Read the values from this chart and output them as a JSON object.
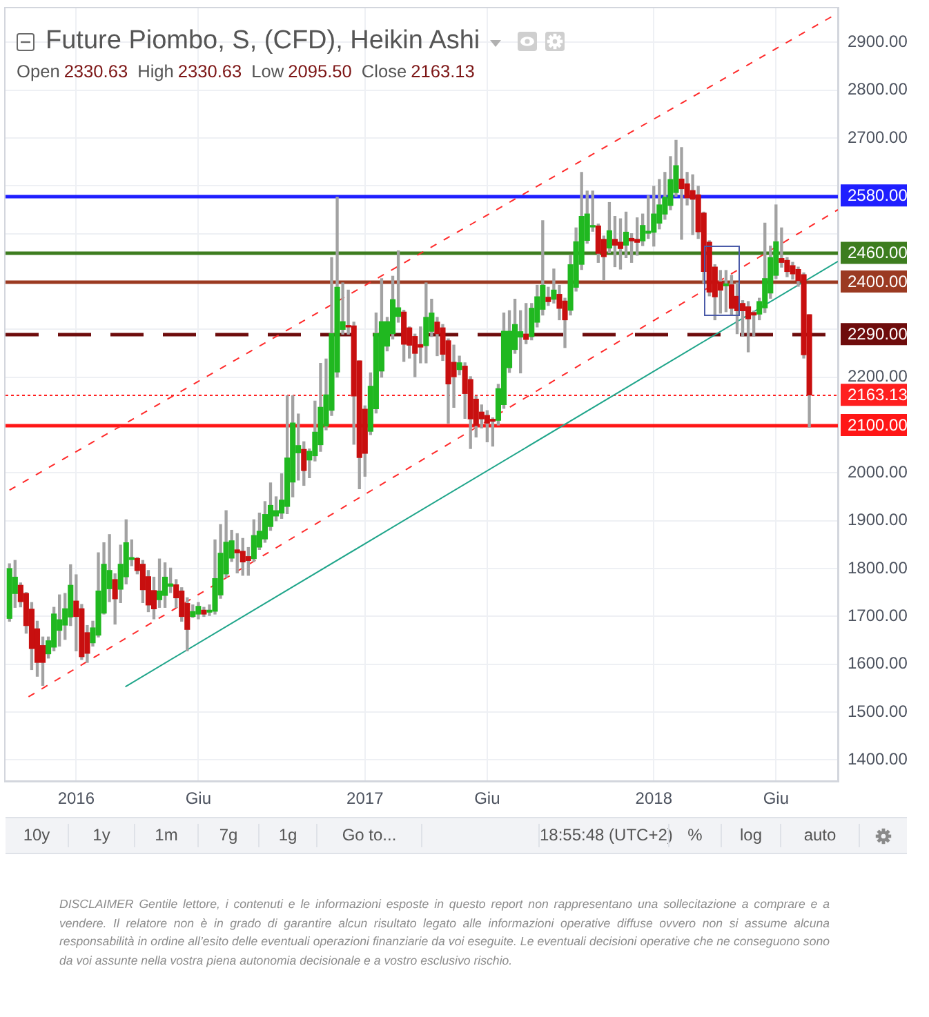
{
  "chart_data": {
    "type": "candlestick",
    "title": "Future Piombo, S, (CFD), Heikin Ashi",
    "subtitle": "Open 2330.63 High 2330.63 Low 2095.50 Close 2163.13",
    "x": [
      "2015-10-12",
      "2015-10-19",
      "2015-10-26",
      "2015-11-02",
      "2015-11-09",
      "2015-11-16",
      "2015-11-23",
      "2015-11-30",
      "2015-12-07",
      "2015-12-14",
      "2015-12-21",
      "2015-12-28",
      "2016-01-04",
      "2016-01-11",
      "2016-01-18",
      "2016-01-25",
      "2016-02-01",
      "2016-02-08",
      "2016-02-15",
      "2016-02-22",
      "2016-02-29",
      "2016-03-07",
      "2016-03-14",
      "2016-03-21",
      "2016-03-28",
      "2016-04-04",
      "2016-04-11",
      "2016-04-18",
      "2016-04-25",
      "2016-05-02",
      "2016-05-09",
      "2016-05-16",
      "2016-05-23",
      "2016-05-30",
      "2016-06-06",
      "2016-06-13",
      "2016-06-20",
      "2016-06-27",
      "2016-07-04",
      "2016-07-11",
      "2016-07-18",
      "2016-07-25",
      "2016-08-01",
      "2016-08-08",
      "2016-08-15",
      "2016-08-22",
      "2016-08-29",
      "2016-09-05",
      "2016-09-12",
      "2016-09-19",
      "2016-09-26",
      "2016-10-03",
      "2016-10-10",
      "2016-10-17",
      "2016-10-24",
      "2016-10-31",
      "2016-11-07",
      "2016-11-14",
      "2016-11-21",
      "2016-11-28",
      "2016-12-05",
      "2016-12-12",
      "2016-12-19",
      "2016-12-26",
      "2017-01-02",
      "2017-01-09",
      "2017-01-16",
      "2017-01-23",
      "2017-01-30",
      "2017-02-06",
      "2017-02-13",
      "2017-02-20",
      "2017-02-27",
      "2017-03-06",
      "2017-03-13",
      "2017-03-20",
      "2017-03-27",
      "2017-04-03",
      "2017-04-10",
      "2017-04-17",
      "2017-04-24",
      "2017-05-01",
      "2017-05-08",
      "2017-05-15",
      "2017-05-22",
      "2017-05-29",
      "2017-06-05",
      "2017-06-12",
      "2017-06-19",
      "2017-06-26",
      "2017-07-03",
      "2017-07-10",
      "2017-07-17",
      "2017-07-24",
      "2017-07-31",
      "2017-08-07",
      "2017-08-14",
      "2017-08-21",
      "2017-08-28",
      "2017-09-04",
      "2017-09-11",
      "2017-09-18",
      "2017-09-25",
      "2017-10-02",
      "2017-10-09",
      "2017-10-16",
      "2017-10-23",
      "2017-10-30",
      "2017-11-06",
      "2017-11-13",
      "2017-11-20",
      "2017-11-27",
      "2017-12-04",
      "2017-12-11",
      "2017-12-18",
      "2017-12-25",
      "2018-01-01",
      "2018-01-08",
      "2018-01-15",
      "2018-01-22",
      "2018-01-29",
      "2018-02-05",
      "2018-02-12",
      "2018-02-19",
      "2018-02-26",
      "2018-03-05",
      "2018-03-12",
      "2018-03-19",
      "2018-03-26",
      "2018-04-02",
      "2018-04-09",
      "2018-04-16",
      "2018-04-23",
      "2018-04-30",
      "2018-05-07",
      "2018-05-14",
      "2018-05-21",
      "2018-05-28",
      "2018-06-04",
      "2018-06-11",
      "2018-06-18",
      "2018-06-25",
      "2018-07-02",
      "2018-07-09",
      "2018-07-16"
    ],
    "ohlc": [
      [
        1696,
        1810,
        1690,
        1800
      ],
      [
        1748,
        1817,
        1719,
        1782
      ],
      [
        1765,
        1770,
        1720,
        1731
      ],
      [
        1748,
        1750,
        1665,
        1681
      ],
      [
        1715,
        1729,
        1589,
        1633
      ],
      [
        1674,
        1690,
        1575,
        1604
      ],
      [
        1639,
        1657,
        1556,
        1604
      ],
      [
        1622,
        1657,
        1613,
        1649
      ],
      [
        1636,
        1719,
        1628,
        1705
      ],
      [
        1671,
        1745,
        1638,
        1693
      ],
      [
        1682,
        1748,
        1652,
        1716
      ],
      [
        1699,
        1808,
        1681,
        1765
      ],
      [
        1732,
        1787,
        1628,
        1700
      ],
      [
        1716,
        1725,
        1610,
        1616
      ],
      [
        1666,
        1681,
        1604,
        1623
      ],
      [
        1645,
        1690,
        1638,
        1676
      ],
      [
        1661,
        1833,
        1657,
        1753
      ],
      [
        1707,
        1854,
        1705,
        1809
      ],
      [
        1758,
        1871,
        1731,
        1796
      ],
      [
        1777,
        1789,
        1684,
        1737
      ],
      [
        1757,
        1849,
        1729,
        1809
      ],
      [
        1783,
        1902,
        1768,
        1854
      ],
      [
        1819,
        1860,
        1806,
        1823
      ],
      [
        1821,
        1823,
        1789,
        1796
      ],
      [
        1809,
        1817,
        1729,
        1756
      ],
      [
        1783,
        1796,
        1710,
        1724
      ],
      [
        1754,
        1782,
        1695,
        1716
      ],
      [
        1735,
        1820,
        1719,
        1753
      ],
      [
        1744,
        1812,
        1719,
        1782
      ],
      [
        1763,
        1801,
        1750,
        1768
      ],
      [
        1766,
        1777,
        1719,
        1739
      ],
      [
        1753,
        1760,
        1690,
        1700
      ],
      [
        1727,
        1739,
        1628,
        1673
      ],
      [
        1700,
        1724,
        1698,
        1710
      ],
      [
        1705,
        1729,
        1695,
        1721
      ],
      [
        1713,
        1719,
        1700,
        1705
      ],
      [
        1709,
        1724,
        1702,
        1713
      ],
      [
        1711,
        1860,
        1705,
        1779
      ],
      [
        1745,
        1892,
        1738,
        1832
      ],
      [
        1789,
        1921,
        1782,
        1855
      ],
      [
        1822,
        1880,
        1815,
        1858
      ],
      [
        1839,
        1873,
        1791,
        1833
      ],
      [
        1836,
        1863,
        1786,
        1814
      ],
      [
        1825,
        1844,
        1786,
        1817
      ],
      [
        1821,
        1902,
        1815,
        1869
      ],
      [
        1845,
        1916,
        1840,
        1878
      ],
      [
        1862,
        1940,
        1855,
        1913
      ],
      [
        1888,
        1979,
        1880,
        1932
      ],
      [
        1910,
        1950,
        1900,
        1921
      ],
      [
        1916,
        1998,
        1905,
        1943
      ],
      [
        1930,
        2161,
        1915,
        2031
      ],
      [
        1981,
        2161,
        1950,
        2104
      ],
      [
        2042,
        2123,
        1985,
        2057
      ],
      [
        2049,
        2065,
        1974,
        2005
      ],
      [
        2027,
        2050,
        1990,
        2045
      ],
      [
        2036,
        2150,
        2025,
        2085
      ],
      [
        2059,
        2229,
        2045,
        2137
      ],
      [
        2098,
        2238,
        2090,
        2163
      ],
      [
        2131,
        2450,
        2120,
        2291
      ],
      [
        2211,
        2576,
        2200,
        2388
      ],
      [
        2300,
        2397,
        2290,
        2316
      ],
      [
        2308,
        2382,
        2290,
        2305
      ],
      [
        2307,
        2315,
        2060,
        2161
      ],
      [
        2234,
        2234,
        1967,
        2032
      ],
      [
        2133,
        2140,
        1993,
        2041
      ],
      [
        2087,
        2209,
        2080,
        2181
      ],
      [
        2134,
        2334,
        2125,
        2291
      ],
      [
        2213,
        2406,
        2200,
        2316
      ],
      [
        2265,
        2325,
        2255,
        2316
      ],
      [
        2291,
        2411,
        2280,
        2362
      ],
      [
        2327,
        2464,
        2315,
        2345
      ],
      [
        2336,
        2340,
        2233,
        2269
      ],
      [
        2303,
        2305,
        2240,
        2267
      ],
      [
        2285,
        2290,
        2201,
        2250
      ],
      [
        2268,
        2305,
        2230,
        2263
      ],
      [
        2266,
        2397,
        2230,
        2325
      ],
      [
        2296,
        2363,
        2285,
        2334
      ],
      [
        2315,
        2325,
        2245,
        2291
      ],
      [
        2303,
        2310,
        2235,
        2248
      ],
      [
        2276,
        2280,
        2104,
        2186
      ],
      [
        2231,
        2267,
        2137,
        2201
      ],
      [
        2216,
        2244,
        2205,
        2230
      ],
      [
        2223,
        2230,
        2114,
        2166
      ],
      [
        2195,
        2201,
        2051,
        2113
      ],
      [
        2154,
        2160,
        2075,
        2099
      ],
      [
        2127,
        2142,
        2094,
        2113
      ],
      [
        2120,
        2130,
        2065,
        2104
      ],
      [
        2112,
        2115,
        2056,
        2108
      ],
      [
        2110,
        2185,
        2100,
        2176
      ],
      [
        2143,
        2334,
        2135,
        2296
      ],
      [
        2220,
        2339,
        2210,
        2296
      ],
      [
        2258,
        2363,
        2250,
        2310
      ],
      [
        2284,
        2339,
        2209,
        2295
      ],
      [
        2290,
        2354,
        2270,
        2279
      ],
      [
        2285,
        2354,
        2278,
        2344
      ],
      [
        2315,
        2392,
        2305,
        2368
      ],
      [
        2342,
        2527,
        2330,
        2392
      ],
      [
        2367,
        2388,
        2350,
        2358
      ],
      [
        2363,
        2426,
        2355,
        2382
      ],
      [
        2373,
        2392,
        2320,
        2344
      ],
      [
        2359,
        2365,
        2262,
        2320
      ],
      [
        2340,
        2454,
        2330,
        2435
      ],
      [
        2388,
        2512,
        2380,
        2483
      ],
      [
        2436,
        2628,
        2425,
        2536
      ],
      [
        2486,
        2589,
        2480,
        2541
      ],
      [
        2514,
        2589,
        2505,
        2517
      ],
      [
        2516,
        2520,
        2440,
        2459
      ],
      [
        2488,
        2495,
        2403,
        2452
      ],
      [
        2470,
        2565,
        2460,
        2506
      ],
      [
        2488,
        2536,
        2431,
        2476
      ],
      [
        2482,
        2531,
        2426,
        2469
      ],
      [
        2476,
        2545,
        2450,
        2503
      ],
      [
        2490,
        2500,
        2440,
        2485
      ],
      [
        2488,
        2533,
        2455,
        2482
      ],
      [
        2485,
        2541,
        2475,
        2517
      ],
      [
        2501,
        2579,
        2490,
        2505
      ],
      [
        2503,
        2599,
        2474,
        2541
      ],
      [
        2522,
        2613,
        2510,
        2560
      ],
      [
        2541,
        2628,
        2530,
        2576
      ],
      [
        2559,
        2661,
        2550,
        2613
      ],
      [
        2586,
        2695,
        2578,
        2642
      ],
      [
        2614,
        2680,
        2488,
        2594
      ],
      [
        2604,
        2628,
        2560,
        2575
      ],
      [
        2590,
        2623,
        2498,
        2572
      ],
      [
        2581,
        2599,
        2490,
        2504
      ],
      [
        2543,
        2545,
        2397,
        2421
      ],
      [
        2482,
        2485,
        2370,
        2378
      ],
      [
        2430,
        2435,
        2320,
        2368
      ],
      [
        2399,
        2423,
        2334,
        2382
      ],
      [
        2391,
        2423,
        2337,
        2395
      ],
      [
        2393,
        2413,
        2330,
        2344
      ],
      [
        2369,
        2397,
        2291,
        2339
      ],
      [
        2354,
        2360,
        2286,
        2339
      ],
      [
        2347,
        2358,
        2253,
        2322
      ],
      [
        2335,
        2338,
        2286,
        2330
      ],
      [
        2332,
        2365,
        2320,
        2358
      ],
      [
        2345,
        2522,
        2335,
        2406
      ],
      [
        2376,
        2474,
        2365,
        2450
      ],
      [
        2413,
        2560,
        2406,
        2483
      ],
      [
        2448,
        2512,
        2430,
        2440
      ],
      [
        2444,
        2450,
        2410,
        2421
      ],
      [
        2433,
        2440,
        2405,
        2416
      ],
      [
        2425,
        2430,
        2390,
        2402
      ],
      [
        2414,
        2418,
        2240,
        2247
      ],
      [
        2330.63,
        2330.63,
        2095.5,
        2163.13
      ]
    ],
    "colors": [
      "#20b820",
      "#20b820",
      "#c80f0f",
      "#c80f0f",
      "#c80f0f",
      "#c80f0f",
      "#c80f0f",
      "#20b820",
      "#20b820",
      "#20b820",
      "#20b820",
      "#20b820",
      "#c80f0f",
      "#c80f0f",
      "#c80f0f",
      "#20b820",
      "#20b820",
      "#20b820",
      "#20b820",
      "#c80f0f",
      "#20b820",
      "#20b820",
      "#20b820",
      "#c80f0f",
      "#c80f0f",
      "#c80f0f",
      "#c80f0f",
      "#20b820",
      "#20b820",
      "#20b820",
      "#c80f0f",
      "#c80f0f",
      "#c80f0f",
      "#20b820",
      "#20b820",
      "#c80f0f",
      "#20b820",
      "#20b820",
      "#20b820",
      "#20b820",
      "#20b820",
      "#c80f0f",
      "#c80f0f",
      "#c80f0f",
      "#20b820",
      "#20b820",
      "#20b820",
      "#20b820",
      "#20b820",
      "#20b820",
      "#20b820",
      "#20b820",
      "#20b820",
      "#c80f0f",
      "#20b820",
      "#20b820",
      "#20b820",
      "#20b820",
      "#20b820",
      "#20b820",
      "#20b820",
      "#c80f0f",
      "#c80f0f",
      "#c80f0f",
      "#c80f0f",
      "#20b820",
      "#20b820",
      "#20b820",
      "#20b820",
      "#20b820",
      "#20b820",
      "#c80f0f",
      "#c80f0f",
      "#c80f0f",
      "#c80f0f",
      "#20b820",
      "#20b820",
      "#c80f0f",
      "#c80f0f",
      "#c80f0f",
      "#c80f0f",
      "#20b820",
      "#c80f0f",
      "#c80f0f",
      "#c80f0f",
      "#c80f0f",
      "#c80f0f",
      "#c80f0f",
      "#20b820",
      "#20b820",
      "#20b820",
      "#20b820",
      "#20b820",
      "#c80f0f",
      "#20b820",
      "#20b820",
      "#20b820",
      "#c80f0f",
      "#20b820",
      "#c80f0f",
      "#c80f0f",
      "#20b820",
      "#20b820",
      "#20b820",
      "#20b820",
      "#20b820",
      "#c80f0f",
      "#c80f0f",
      "#20b820",
      "#c80f0f",
      "#c80f0f",
      "#20b820",
      "#c80f0f",
      "#c80f0f",
      "#20b820",
      "#20b820",
      "#20b820",
      "#20b820",
      "#20b820",
      "#20b820",
      "#20b820",
      "#c80f0f",
      "#c80f0f",
      "#c80f0f",
      "#c80f0f",
      "#c80f0f",
      "#c80f0f",
      "#c80f0f",
      "#c80f0f",
      "#20b820",
      "#c80f0f",
      "#c80f0f",
      "#c80f0f",
      "#c80f0f",
      "#c80f0f",
      "#20b820",
      "#20b820",
      "#20b820",
      "#20b820",
      "#c80f0f",
      "#c80f0f",
      "#c80f0f",
      "#c80f0f",
      "#c80f0f",
      "#c80f0f"
    ],
    "series": [
      {
        "type": "line",
        "x": [
          "2015-10-12",
          "2018-08-21"
        ],
        "values": [
          1964,
          2961
        ],
        "color": "#ff2a2a",
        "line_style": "dashed"
      },
      {
        "type": "line",
        "x": [
          "2015-11-05",
          "2018-08-21"
        ],
        "values": [
          1532,
          2550
        ],
        "color": "#ff2a2a",
        "line_style": "dashed"
      },
      {
        "type": "line",
        "x": [
          "2016-03-06",
          "2018-08-21"
        ],
        "values": [
          1553,
          2442
        ],
        "color": "#1fa58a",
        "line_style": "solid"
      }
    ],
    "xlim": [
      "2015-10-07",
      "2018-08-21"
    ],
    "xticks": [
      {
        "value": "2016-01-04",
        "label": "2016"
      },
      {
        "value": "2016-06-06",
        "label": "Giu"
      },
      {
        "value": "2017-01-02",
        "label": "2017"
      },
      {
        "value": "2017-06-05",
        "label": "Giu"
      },
      {
        "value": "2018-01-01",
        "label": "2018"
      },
      {
        "value": "2018-06-04",
        "label": "Giu"
      }
    ],
    "ylim": [
      1356,
      2971
    ],
    "yticks": [
      {
        "value": 1400,
        "label": "1400.00"
      },
      {
        "value": 1500,
        "label": "1500.00"
      },
      {
        "value": 1600,
        "label": "1600.00"
      },
      {
        "value": 1700,
        "label": "1700.00"
      },
      {
        "value": 1800,
        "label": "1800.00"
      },
      {
        "value": 1900,
        "label": "1900.00"
      },
      {
        "value": 2000,
        "label": "2000.00"
      },
      {
        "value": 2100,
        "label": null
      },
      {
        "value": 2200,
        "label": "2200.00"
      },
      {
        "value": 2300,
        "label": null
      },
      {
        "value": 2400,
        "label": null
      },
      {
        "value": 2500,
        "label": null
      },
      {
        "value": 2600,
        "label": null
      },
      {
        "value": 2700,
        "label": "2700.00"
      },
      {
        "value": 2800,
        "label": "2800.00"
      },
      {
        "value": 2900,
        "label": "2900.00"
      }
    ],
    "ref_lines": [
      {
        "axis": "y",
        "value": 2580,
        "label": "2580.00",
        "color": "#1f1fff",
        "line_style": "solid"
      },
      {
        "axis": "y",
        "value": 2460,
        "label": "2460.00",
        "color": "#3d7d1f",
        "line_style": "solid"
      },
      {
        "axis": "y",
        "value": 2400,
        "label": "2400.00",
        "color": "#9b3a22",
        "line_style": "solid"
      },
      {
        "axis": "y",
        "value": 2290,
        "label": "2290.00",
        "color": "#6e0c0c",
        "line_style": "dashed"
      },
      {
        "axis": "y",
        "value": 2163.13,
        "label": "2163.13",
        "color": "#ff1f1f",
        "line_style": "dotted"
      },
      {
        "axis": "y",
        "value": 2100,
        "label": "2100.00",
        "color": "#ff1616",
        "line_style": "solid"
      }
    ],
    "grid": true,
    "annotations": [
      "10y",
      "1y",
      "1m",
      "7g",
      "1g",
      "Go to...",
      "18:55:48 (UTC+2)",
      "%",
      "log",
      "auto",
      "DISCLAIMER Gentile lettore, i contenuti e le informazioni esposte in questo report non rappresentano una sollecitazione a comprare e a vendere. Il relatore non è in grado di garantire alcun risultato legato alle informazioni operative diffuse ovvero non si assume alcuna responsabilità in ordine all’esito delle eventuali operazioni finanziarie da voi eseguite. Le eventuali decisioni operative che ne conseguono sono da voi assunte nella vostra piena autonomia decisionale e a vostro esclusivo rischio."
    ]
  }
}
